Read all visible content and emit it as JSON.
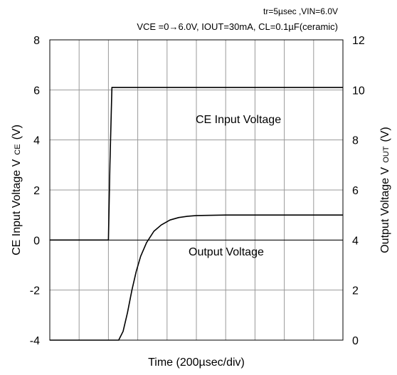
{
  "chart_data": {
    "type": "line",
    "conditions_line1": "tr=5µsec ,VIN=6.0V",
    "conditions_line2": "VCE =0→6.0V, IOUT=30mA, CL=0.1µF(ceramic)",
    "xlabel": "Time (200µsec/div)",
    "ylabel_left": "CE Input Voltage V",
    "ylabel_left_sub": "CE",
    "ylabel_left_unit": "(V)",
    "ylabel_right": "Output Voltage V",
    "ylabel_right_sub": "OUT",
    "ylabel_right_unit": "(V)",
    "ylim_left": [
      -4,
      8
    ],
    "ylim_right": [
      0,
      12
    ],
    "yticks_left": [
      "8",
      "6",
      "4",
      "2",
      "0",
      "-2",
      "-4"
    ],
    "yticks_right": [
      "12",
      "10",
      "8",
      "6",
      "4",
      "2",
      "0"
    ],
    "x_divisions": 10,
    "grid": true,
    "series": [
      {
        "name": "CE Input Voltage",
        "axis": "left",
        "x": [
          0,
          2.0,
          2.05,
          2.12,
          10
        ],
        "y": [
          0,
          0,
          3.0,
          6.1,
          6.1
        ]
      },
      {
        "name": "Output Voltage",
        "axis": "right",
        "x": [
          0,
          2.35,
          2.5,
          2.65,
          2.8,
          2.95,
          3.1,
          3.3,
          3.55,
          3.8,
          4.1,
          4.4,
          4.7,
          5.0,
          6.0,
          10
        ],
        "y": [
          0,
          0,
          0.35,
          1.1,
          2.0,
          2.75,
          3.35,
          3.9,
          4.35,
          4.6,
          4.8,
          4.9,
          4.95,
          4.98,
          5.0,
          5.0
        ]
      }
    ]
  }
}
